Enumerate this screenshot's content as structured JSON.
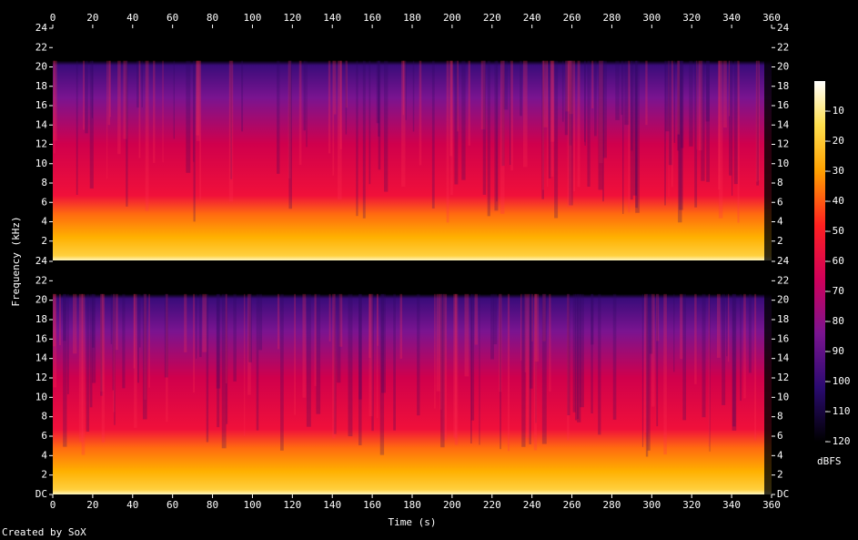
{
  "chart_data": [
    {
      "type": "spectrogram",
      "ylabel": "Frequency (kHz)",
      "xlim": [
        0,
        360
      ],
      "xticks": [
        0,
        20,
        40,
        60,
        80,
        100,
        120,
        140,
        160,
        180,
        200,
        220,
        240,
        260,
        280,
        300,
        320,
        340,
        360
      ],
      "ylim": [
        0,
        24
      ],
      "yticks": [
        2,
        4,
        6,
        8,
        10,
        12,
        14,
        16,
        18,
        20,
        22,
        24
      ]
    },
    {
      "type": "spectrogram",
      "xlabel": "Time (s)",
      "xlim": [
        0,
        360
      ],
      "xticks": [
        0,
        20,
        40,
        60,
        80,
        100,
        120,
        140,
        160,
        180,
        200,
        220,
        240,
        260,
        280,
        300,
        320,
        340,
        360
      ],
      "ylim": [
        0,
        24
      ],
      "yticks": [
        {
          "value": 0,
          "label": "DC"
        },
        2,
        4,
        6,
        8,
        10,
        12,
        14,
        16,
        18,
        20,
        22,
        24
      ]
    }
  ],
  "colorbar": {
    "label": "dBFS",
    "clim": [
      -120,
      0
    ],
    "ticks": [
      -10,
      -20,
      -30,
      -40,
      -50,
      -60,
      -70,
      -80,
      -90,
      -100,
      -110,
      -120
    ]
  },
  "footer": "Created by SoX"
}
